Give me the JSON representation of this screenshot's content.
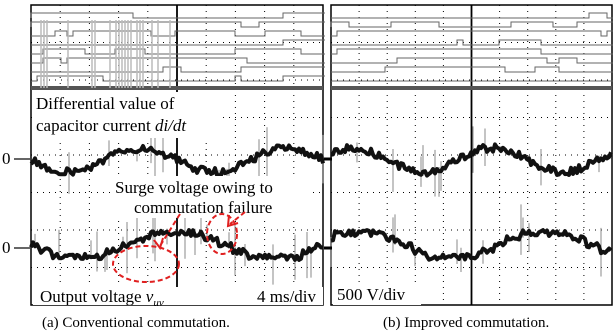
{
  "zero_labels": [
    "0",
    "0"
  ],
  "panel_a": {
    "caption": "(a) Conventional commutation.",
    "current_label": {
      "line1": "Differential value of",
      "line2": "capacitor current ",
      "symbol": "di/dt"
    },
    "surge_label": [
      "Surge voltage owing to",
      "commutation failure"
    ],
    "voltage_label": {
      "text": "Output voltage ",
      "symbol": "v",
      "subscript": "uv"
    },
    "time_scale": "4 ms/div"
  },
  "panel_b": {
    "caption": "(b) Improved commutation.",
    "voltage_scale": "500 V/div"
  }
}
